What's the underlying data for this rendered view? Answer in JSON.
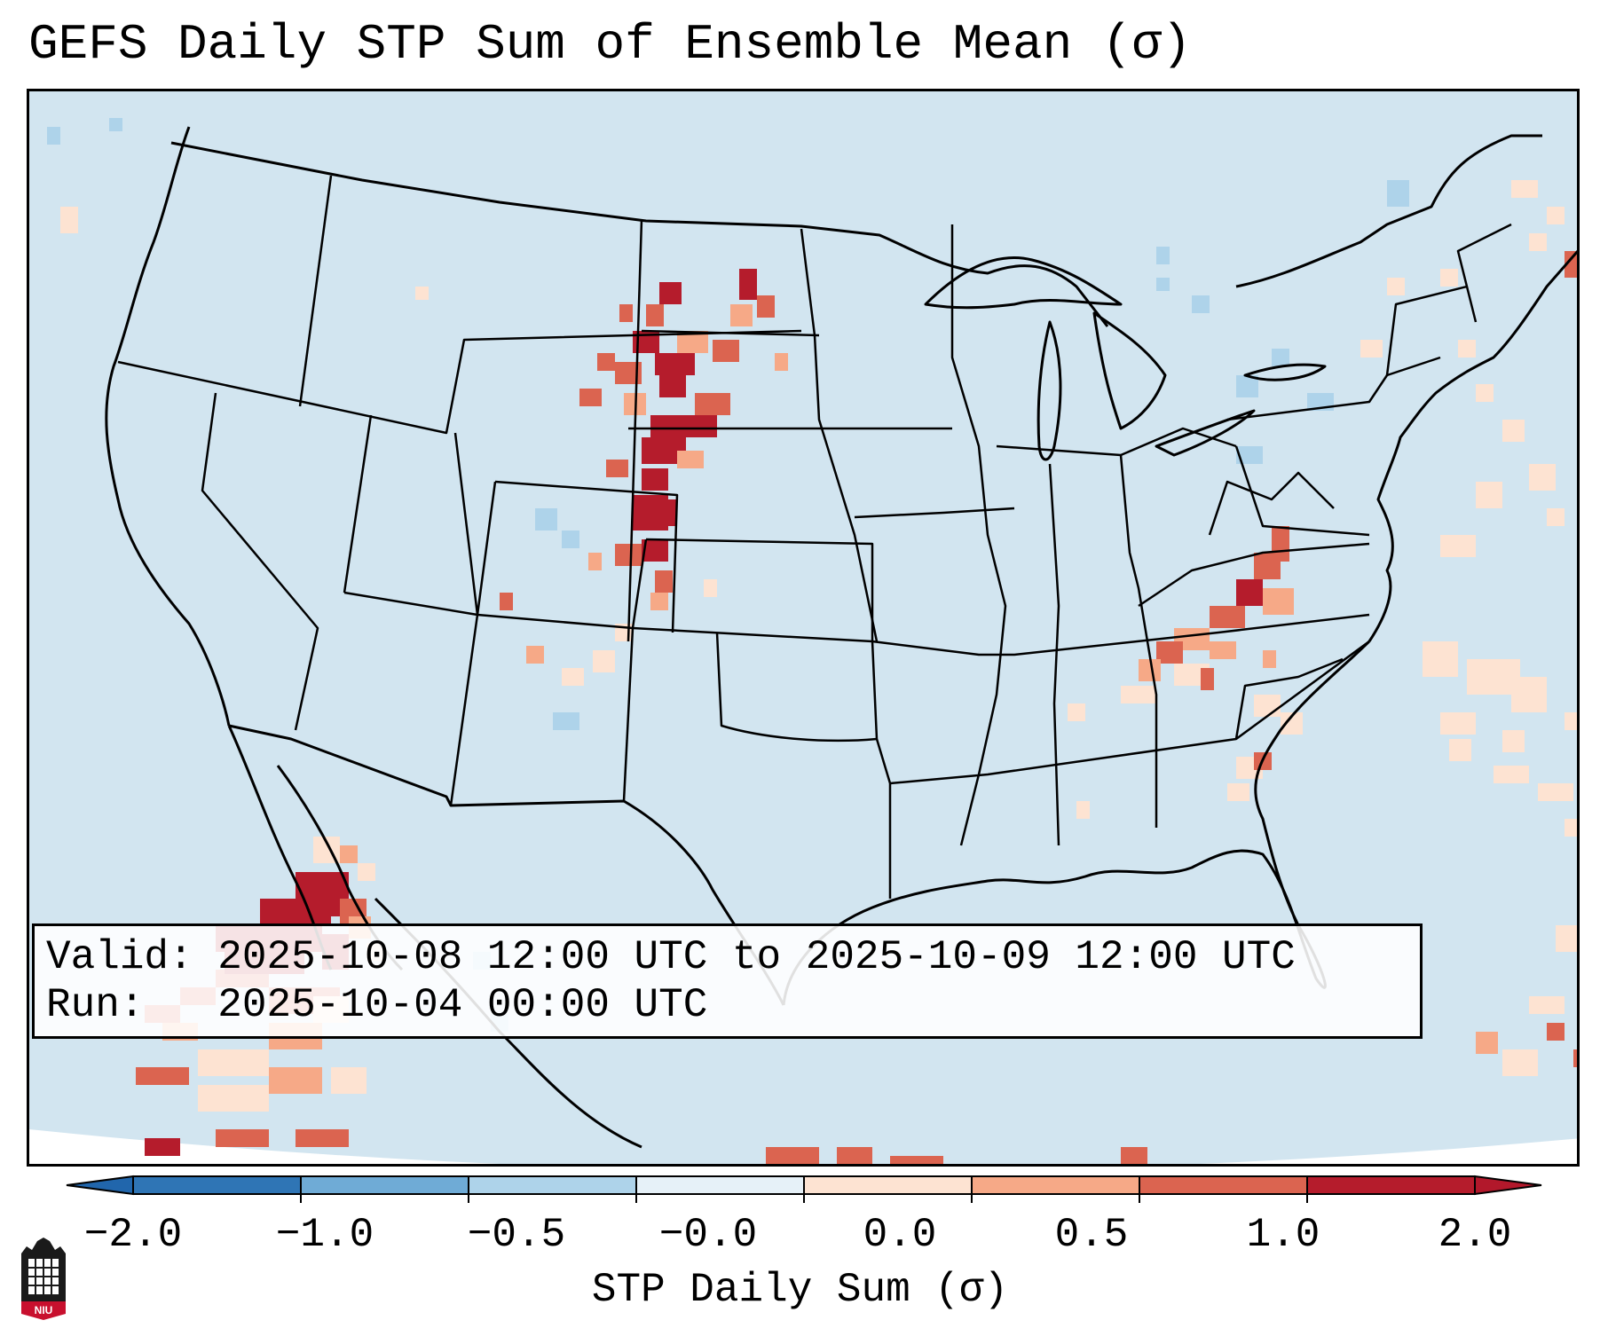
{
  "title": "GEFS Daily STP Sum of Ensemble Mean (σ)",
  "info": {
    "valid_label": "Valid:",
    "valid_value": "2025-10-08 12:00 UTC to 2025-10-09 12:00 UTC",
    "run_label": "Run:",
    "run_value": "2025-10-04 00:00 UTC"
  },
  "colorbar": {
    "label": "STP Daily Sum (σ)",
    "ticks": [
      "−2.0",
      "−1.0",
      "−0.5",
      "−0.0",
      "0.0",
      "0.5",
      "1.0",
      "2.0"
    ],
    "colors": [
      "#2f75b5",
      "#6fabd6",
      "#aed3ea",
      "#e6f1f8",
      "#fde3d2",
      "#f6a987",
      "#db6450",
      "#b51c2c"
    ],
    "extend_low": "#2166ac",
    "extend_high": "#b2182b"
  },
  "map": {
    "background": "#d2e5f0",
    "outside": "#ffffff",
    "line_color": "#000000"
  },
  "logo": {
    "text": "NIU",
    "color": "#c8102e"
  }
}
